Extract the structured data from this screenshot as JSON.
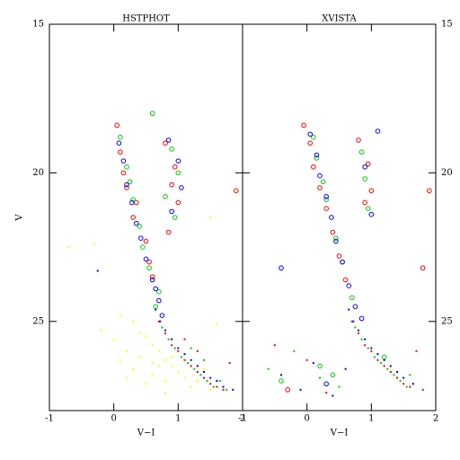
{
  "chart_data": [
    {
      "type": "scatter",
      "title": "HSTPHOT",
      "xlabel": "V−I",
      "ylabel": "V",
      "xlim": [
        -1,
        2
      ],
      "ylim": [
        28,
        15
      ],
      "xticks": [
        -1,
        0,
        1,
        2
      ],
      "yticks": [
        15,
        20,
        25
      ],
      "ytick_side": "left",
      "series": [
        {
          "color": "#ffff00",
          "marker": "dot",
          "x": [
            -0.7,
            -0.3,
            0.1,
            0.3,
            0.5,
            0.6,
            0.7,
            0.8,
            0.9,
            0.4,
            0.2,
            0.0,
            -0.2,
            0.6,
            0.8,
            1.0,
            1.1,
            1.2,
            0.5,
            0.3,
            0.7,
            0.9,
            1.3,
            1.4,
            1.5,
            0.4,
            0.6,
            0.2,
            1.6,
            1.5,
            0.1,
            0.8
          ],
          "y": [
            22.5,
            22.4,
            24.8,
            25.0,
            25.5,
            25.8,
            26.0,
            26.3,
            26.5,
            26.2,
            26.0,
            25.6,
            25.3,
            26.8,
            27.0,
            26.7,
            26.9,
            27.2,
            27.1,
            26.6,
            26.5,
            26.2,
            27.0,
            26.6,
            27.3,
            25.4,
            26.4,
            26.9,
            25.1,
            21.5,
            26.3,
            27.4
          ]
        },
        {
          "color": "#ff0000",
          "marker": "open",
          "x": [
            0.05,
            0.1,
            0.15,
            0.2,
            0.8,
            0.95,
            1.0,
            0.3,
            0.35,
            0.5,
            0.55,
            0.9,
            0.85,
            0.6,
            1.9
          ],
          "y": [
            18.4,
            19.3,
            20.0,
            20.5,
            19.0,
            19.8,
            21.0,
            21.5,
            21.0,
            22.3,
            23.0,
            20.4,
            22.0,
            23.5,
            20.6
          ]
        },
        {
          "color": "#00cc00",
          "marker": "open",
          "x": [
            0.6,
            0.1,
            0.2,
            0.25,
            0.3,
            0.9,
            1.0,
            0.95,
            0.4,
            0.45,
            0.55,
            0.7,
            0.8,
            0.65
          ],
          "y": [
            18.0,
            18.8,
            19.8,
            20.3,
            20.9,
            19.2,
            20.0,
            21.5,
            21.8,
            22.5,
            23.2,
            24.0,
            20.8,
            24.5
          ]
        },
        {
          "color": "#0000ff",
          "marker": "open",
          "x": [
            0.08,
            0.15,
            0.2,
            0.28,
            0.35,
            0.42,
            0.5,
            0.6,
            0.7,
            0.85,
            1.0,
            1.05,
            0.9,
            0.75,
            0.65
          ],
          "y": [
            19.0,
            19.6,
            20.4,
            21.0,
            21.7,
            22.2,
            22.9,
            23.6,
            24.3,
            18.9,
            19.6,
            20.5,
            21.3,
            24.8,
            23.9
          ]
        },
        {
          "color": "#ff0000",
          "marker": "dot",
          "x": [
            0.7,
            0.8,
            0.9,
            1.0,
            1.1,
            1.2,
            1.3,
            1.4,
            1.5,
            1.6,
            1.7,
            1.8,
            1.1,
            1.3
          ],
          "y": [
            25.0,
            25.4,
            25.8,
            26.0,
            26.3,
            26.5,
            26.7,
            26.9,
            27.1,
            27.2,
            27.3,
            26.4,
            25.6,
            26.0
          ]
        },
        {
          "color": "#00cc00",
          "marker": "dot",
          "x": [
            0.75,
            0.85,
            0.95,
            1.05,
            1.15,
            1.25,
            1.35,
            1.45,
            1.55,
            1.65,
            1.75,
            1.2,
            1.4
          ],
          "y": [
            25.2,
            25.6,
            25.9,
            26.2,
            26.4,
            26.6,
            26.8,
            27.0,
            27.2,
            27.0,
            27.3,
            25.9,
            26.3
          ]
        },
        {
          "color": "#0000ff",
          "marker": "dot",
          "x": [
            0.65,
            0.72,
            0.8,
            0.9,
            1.0,
            1.1,
            1.2,
            1.3,
            1.4,
            1.5,
            1.6,
            1.7,
            1.85,
            -0.25
          ],
          "y": [
            24.6,
            25.0,
            25.3,
            25.6,
            25.9,
            26.1,
            26.3,
            26.5,
            26.7,
            26.9,
            27.0,
            27.2,
            27.3,
            23.3
          ]
        }
      ]
    },
    {
      "type": "scatter",
      "title": "XVISTA",
      "xlabel": "V−I",
      "xlim": [
        -1,
        2
      ],
      "ylim": [
        28,
        15
      ],
      "xticks": [
        -1,
        0,
        1,
        2
      ],
      "yticks": [
        15,
        20,
        25
      ],
      "ytick_side": "right",
      "series": [
        {
          "color": "#ff0000",
          "marker": "open",
          "x": [
            -0.05,
            0.05,
            0.1,
            0.2,
            0.3,
            0.8,
            0.95,
            1.0,
            0.4,
            0.5,
            0.6,
            0.9,
            1.9,
            1.8,
            -0.3
          ],
          "y": [
            18.4,
            19.0,
            19.8,
            20.5,
            21.2,
            18.9,
            19.7,
            20.6,
            22.0,
            22.8,
            23.6,
            21.0,
            20.6,
            23.2,
            27.3
          ]
        },
        {
          "color": "#00cc00",
          "marker": "open",
          "x": [
            0.1,
            0.15,
            0.25,
            0.3,
            0.85,
            0.9,
            0.95,
            0.45,
            0.55,
            0.7,
            0.2,
            1.2,
            -0.4,
            0.4
          ],
          "y": [
            18.8,
            19.5,
            20.3,
            20.9,
            19.3,
            20.2,
            21.2,
            22.2,
            23.0,
            24.2,
            26.5,
            26.2,
            27.0,
            26.8
          ]
        },
        {
          "color": "#0000ff",
          "marker": "open",
          "x": [
            0.05,
            0.15,
            0.2,
            0.3,
            0.38,
            0.45,
            0.55,
            0.65,
            0.75,
            1.1,
            0.9,
            1.0,
            0.85,
            -0.4,
            0.3
          ],
          "y": [
            18.7,
            19.4,
            20.1,
            20.8,
            21.5,
            22.3,
            23.0,
            23.8,
            24.5,
            18.6,
            19.8,
            21.4,
            24.9,
            23.2,
            27.1
          ]
        },
        {
          "color": "#ff0000",
          "marker": "dot",
          "x": [
            0.7,
            0.8,
            0.9,
            1.0,
            1.1,
            1.2,
            1.3,
            1.4,
            1.5,
            1.6,
            1.8,
            -0.5,
            0.0,
            0.3,
            1.7
          ],
          "y": [
            25.0,
            25.4,
            25.8,
            26.0,
            26.3,
            26.5,
            26.7,
            26.9,
            27.1,
            27.2,
            27.3,
            25.8,
            26.3,
            27.4,
            26.0
          ]
        },
        {
          "color": "#00cc00",
          "marker": "dot",
          "x": [
            0.75,
            0.85,
            0.95,
            1.05,
            1.15,
            1.25,
            1.35,
            1.45,
            1.55,
            -0.6,
            -0.2,
            0.2,
            0.5,
            1.6
          ],
          "y": [
            25.2,
            25.6,
            25.9,
            26.2,
            26.4,
            26.6,
            26.8,
            27.0,
            27.2,
            26.6,
            26.0,
            26.9,
            27.2,
            26.8
          ]
        },
        {
          "color": "#0000ff",
          "marker": "dot",
          "x": [
            0.65,
            0.72,
            0.8,
            0.9,
            1.0,
            1.1,
            1.2,
            1.3,
            1.4,
            1.5,
            1.65,
            -0.4,
            -0.1,
            0.1,
            0.4,
            0.6
          ],
          "y": [
            24.6,
            25.0,
            25.3,
            25.6,
            25.9,
            26.1,
            26.3,
            26.5,
            26.7,
            26.9,
            27.1,
            26.8,
            27.3,
            26.4,
            27.5,
            26.6
          ]
        }
      ]
    }
  ]
}
